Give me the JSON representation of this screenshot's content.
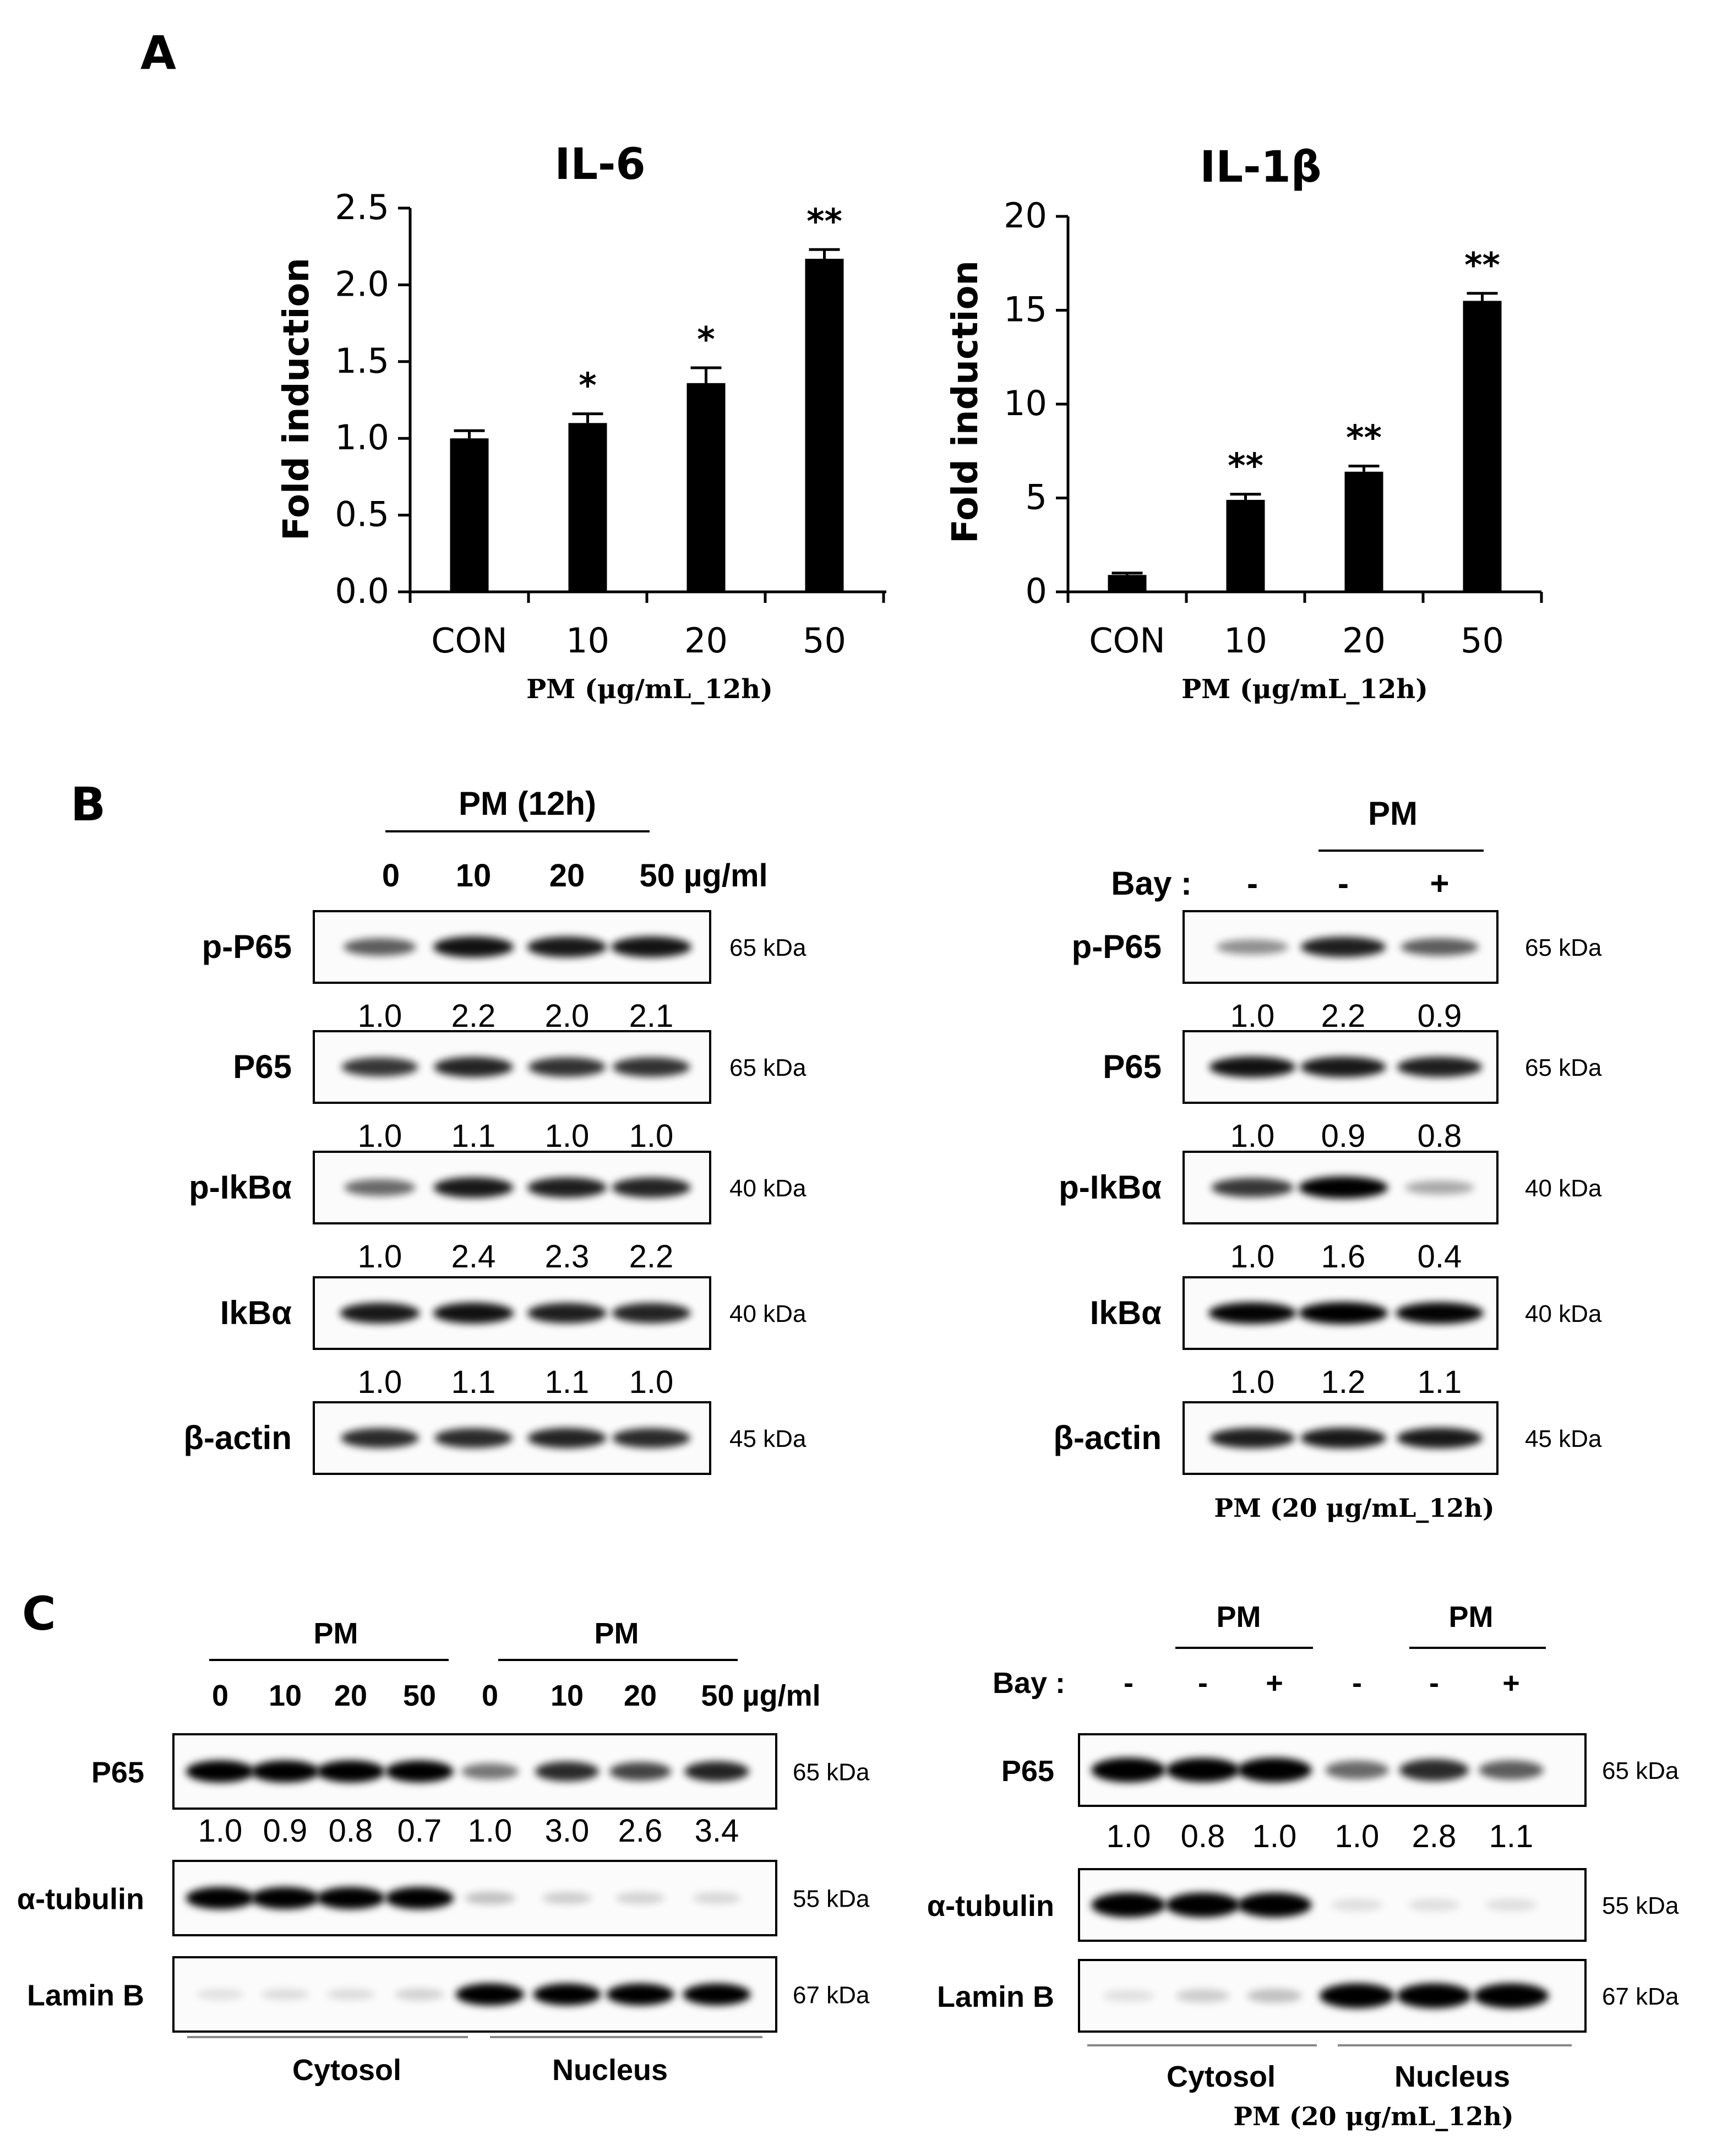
{
  "chart_data": [
    {
      "type": "bar",
      "panel": "A",
      "title": "IL-6",
      "ylabel": "Fold induction",
      "xlabel": "PM (μg/mL_12h)",
      "categories": [
        "CON",
        "10",
        "20",
        "50"
      ],
      "values": [
        1.0,
        1.1,
        1.36,
        2.17
      ],
      "errors": [
        0.05,
        0.06,
        0.1,
        0.06
      ],
      "significance": [
        "",
        "*",
        "*",
        "**"
      ],
      "ylim": [
        0,
        2.5
      ],
      "yticks": [
        "0.0",
        "0.5",
        "1.0",
        "1.5",
        "2.0",
        "2.5"
      ]
    },
    {
      "type": "bar",
      "title": "IL-1β",
      "ylabel": "Fold induction",
      "xlabel": "PM (μg/mL_12h)",
      "categories": [
        "CON",
        "10",
        "20",
        "50"
      ],
      "values": [
        0.9,
        4.9,
        6.4,
        15.5
      ],
      "errors": [
        0.1,
        0.3,
        0.3,
        0.4
      ],
      "significance": [
        "",
        "**",
        "**",
        "**"
      ],
      "ylim": [
        0,
        20
      ],
      "yticks": [
        "0",
        "5",
        "10",
        "15",
        "20"
      ]
    }
  ],
  "panels": {
    "A": "A",
    "B": "B",
    "C": "C"
  },
  "blotB_left": {
    "header": "PM (12h)",
    "lanes": [
      "0",
      "10",
      "20",
      "50 µg/ml"
    ],
    "rows": [
      {
        "label": "p-P65",
        "kda": "65 kDa",
        "quant": [
          "1.0",
          "2.2",
          "2.0",
          "2.1"
        ],
        "intensity": [
          0.55,
          0.85,
          0.82,
          0.84
        ]
      },
      {
        "label": "P65",
        "kda": "65 kDa",
        "quant": [
          "1.0",
          "1.1",
          "1.0",
          "1.0"
        ],
        "intensity": [
          0.7,
          0.78,
          0.72,
          0.72
        ]
      },
      {
        "label": "p-IkBα",
        "kda": "40 kDa",
        "quant": [
          "1.0",
          "2.4",
          "2.3",
          "2.2"
        ],
        "intensity": [
          0.5,
          0.82,
          0.8,
          0.78
        ]
      },
      {
        "label": "IkBα",
        "kda": "40 kDa",
        "quant": [
          "1.0",
          "1.1",
          "1.1",
          "1.0"
        ],
        "intensity": [
          0.82,
          0.85,
          0.8,
          0.78
        ]
      },
      {
        "label": "β-actin",
        "kda": "45 kDa",
        "quant": [],
        "intensity": [
          0.75,
          0.75,
          0.78,
          0.75
        ]
      }
    ]
  },
  "blotB_right": {
    "header": "PM",
    "bay_label": "Bay :",
    "bay": [
      "-",
      "-",
      "+"
    ],
    "caption": "PM (20 μg/mL_12h)",
    "rows": [
      {
        "label": "p-P65",
        "kda": "65 kDa",
        "quant": [
          "1.0",
          "2.2",
          "0.9"
        ],
        "intensity": [
          0.35,
          0.8,
          0.55
        ]
      },
      {
        "label": "P65",
        "kda": "65 kDa",
        "quant": [
          "1.0",
          "0.9",
          "0.8"
        ],
        "intensity": [
          0.85,
          0.82,
          0.8
        ]
      },
      {
        "label": "p-IkBα",
        "kda": "40 kDa",
        "quant": [
          "1.0",
          "1.6",
          "0.4"
        ],
        "intensity": [
          0.7,
          0.95,
          0.25
        ]
      },
      {
        "label": "IkBα",
        "kda": "40 kDa",
        "quant": [
          "1.0",
          "1.2",
          "1.1"
        ],
        "intensity": [
          0.9,
          0.95,
          0.9
        ]
      },
      {
        "label": "β-actin",
        "kda": "45 kDa",
        "quant": [],
        "intensity": [
          0.8,
          0.82,
          0.82
        ]
      }
    ]
  },
  "blotC_left": {
    "header_left": "PM",
    "header_right": "PM",
    "lanes": [
      "0",
      "10",
      "20",
      "50",
      "0",
      "10",
      "20",
      "50 µg/ml"
    ],
    "fractions": [
      "Cytosol",
      "Nucleus"
    ],
    "rows": [
      {
        "label": "P65",
        "kda": "65 kDa",
        "quant": [
          "1.0",
          "0.9",
          "0.8",
          "0.7",
          "1.0",
          "3.0",
          "2.6",
          "3.4"
        ],
        "intensity": [
          0.95,
          0.95,
          0.95,
          0.93,
          0.45,
          0.75,
          0.65,
          0.78
        ]
      },
      {
        "label": "α-tubulin",
        "kda": "55 kDa",
        "quant": [],
        "intensity": [
          0.95,
          0.95,
          0.95,
          0.95,
          0.15,
          0.1,
          0.08,
          0.06
        ]
      },
      {
        "label": "Lamin B",
        "kda": "67 kDa",
        "quant": [],
        "intensity": [
          0.02,
          0.04,
          0.04,
          0.08,
          0.95,
          0.92,
          0.92,
          0.92
        ]
      }
    ]
  },
  "blotC_right": {
    "header_left": "PM",
    "header_right": "PM",
    "bay_label": "Bay :",
    "bay": [
      "-",
      "-",
      "+",
      "-",
      "-",
      "+"
    ],
    "fractions": [
      "Cytosol",
      "Nucleus"
    ],
    "caption": "PM (20 μg/mL_12h)",
    "rows": [
      {
        "label": "P65",
        "kda": "65 kDa",
        "quant": [
          "1.0",
          "0.8",
          "1.0",
          "1.0",
          "2.8",
          "1.1"
        ],
        "intensity": [
          0.95,
          0.92,
          0.95,
          0.5,
          0.75,
          0.55
        ]
      },
      {
        "label": "α-tubulin",
        "kda": "55 kDa",
        "quant": [],
        "intensity": [
          0.95,
          0.95,
          0.95,
          0.03,
          0.03,
          0.03
        ]
      },
      {
        "label": "Lamin B",
        "kda": "67 kDa",
        "quant": [],
        "intensity": [
          0.02,
          0.1,
          0.15,
          0.97,
          0.97,
          0.97
        ]
      }
    ]
  }
}
